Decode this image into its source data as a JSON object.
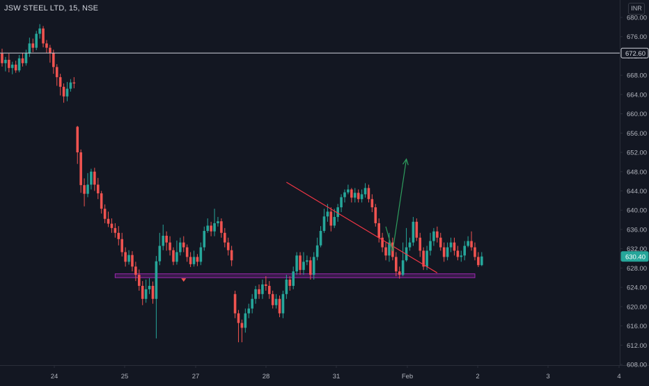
{
  "header": {
    "title": "JSW STEEL LTD, 15, NSE",
    "currency": "INR"
  },
  "price_scale": {
    "ticks": [
      "680.00",
      "676.00",
      "672.00",
      "668.00",
      "664.00",
      "660.00",
      "656.00",
      "652.00",
      "648.00",
      "644.00",
      "640.00",
      "636.00",
      "632.00",
      "628.00",
      "624.00",
      "620.00",
      "616.00",
      "612.00",
      "608.00"
    ]
  },
  "time_scale": {
    "ticks": [
      "24",
      "25",
      "27",
      "28",
      "31",
      "Feb",
      "2",
      "3",
      "4"
    ]
  },
  "badges": {
    "horizontal_line": "672.60",
    "last_price": "630.40"
  },
  "colors": {
    "background": "#131722",
    "up": "#26a69a",
    "down": "#ef5350",
    "horizontal_line": "#d1d4dc",
    "trendline": "#f23645",
    "support_zone": "#9c27b0",
    "projection": "#2e9e5e",
    "last_price_badge": "#26a69a",
    "marker": "#ef5350"
  },
  "chart_data": {
    "type": "candlestick",
    "title": "JSW STEEL LTD, 15, NSE",
    "ylim": [
      607,
      681
    ],
    "y_ticks": [
      680,
      676,
      672,
      668,
      664,
      660,
      656,
      652,
      648,
      644,
      640,
      636,
      632,
      628,
      624,
      620,
      616,
      612,
      608
    ],
    "x_ticks": [
      "24",
      "25",
      "27",
      "28",
      "31",
      "Feb",
      "2",
      "3",
      "4"
    ],
    "grid": false,
    "horizontal_line": 672.6,
    "last_price": 630.4,
    "candles": [
      [
        672.5,
        670.5,
        673.5,
        669.8
      ],
      [
        670.5,
        671.2,
        671.8,
        668.8
      ],
      [
        671.2,
        669.5,
        672.5,
        668.6
      ],
      [
        669.5,
        670.2,
        670.8,
        668.2
      ],
      [
        670.2,
        669.0,
        671.0,
        668.5
      ],
      [
        669.0,
        671.5,
        672.2,
        668.6
      ],
      [
        671.5,
        670.5,
        672.6,
        669.8
      ],
      [
        670.5,
        672.5,
        673.3,
        670.0
      ],
      [
        672.5,
        674.6,
        675.8,
        671.8
      ],
      [
        674.6,
        673.7,
        675.6,
        672.8
      ],
      [
        673.7,
        676.6,
        677.2,
        673.2
      ],
      [
        676.6,
        677.7,
        678.6,
        675.6
      ],
      [
        677.7,
        674.6,
        678.2,
        673.8
      ],
      [
        674.6,
        673.7,
        675.3,
        672.6
      ],
      [
        673.7,
        672.6,
        674.3,
        670.6
      ],
      [
        672.6,
        669.7,
        673.3,
        668.3
      ],
      [
        669.7,
        667.6,
        670.3,
        665.8
      ],
      [
        667.6,
        665.6,
        668.3,
        663.8
      ],
      [
        665.6,
        663.6,
        666.3,
        662.3
      ],
      [
        663.6,
        665.2,
        666.6,
        662.6
      ],
      [
        665.2,
        666.5,
        667.2,
        664.6
      ],
      [
        666.5,
        666.3,
        667.6,
        665.3
      ],
      [
        657.3,
        652.0,
        657.5,
        649.6
      ],
      [
        652.0,
        645.2,
        652.6,
        643.6
      ],
      [
        645.2,
        643.4,
        646.6,
        640.8
      ],
      [
        643.4,
        645.3,
        647.7,
        642.7
      ],
      [
        645.3,
        648.0,
        648.6,
        644.3
      ],
      [
        648.0,
        645.3,
        648.8,
        644.0
      ],
      [
        645.3,
        643.5,
        646.7,
        642.3
      ],
      [
        643.5,
        640.3,
        644.0,
        639.3
      ],
      [
        640.3,
        638.2,
        641.2,
        637.3
      ],
      [
        638.2,
        637.2,
        639.7,
        636.5
      ],
      [
        637.2,
        636.3,
        638.3,
        635.3
      ],
      [
        636.3,
        635.3,
        637.3,
        634.3
      ],
      [
        635.3,
        634.0,
        636.7,
        632.7
      ],
      [
        634.0,
        631.3,
        635.3,
        630.4
      ],
      [
        631.3,
        629.3,
        632.3,
        628.3
      ],
      [
        629.3,
        630.7,
        631.7,
        628.7
      ],
      [
        630.7,
        628.3,
        631.5,
        627.3
      ],
      [
        628.3,
        626.6,
        629.3,
        625.3
      ],
      [
        626.6,
        624.3,
        627.7,
        623.3
      ],
      [
        624.3,
        621.6,
        625.3,
        620.3
      ],
      [
        621.6,
        623.6,
        625.6,
        620.8
      ],
      [
        623.6,
        624.3,
        625.9,
        622.6
      ],
      [
        624.3,
        621.6,
        625.2,
        620.6
      ],
      [
        621.6,
        629.4,
        630.5,
        613.4
      ],
      [
        629.4,
        632.6,
        635.3,
        628.6
      ],
      [
        632.6,
        634.7,
        637.0,
        631.7
      ],
      [
        634.7,
        633.3,
        635.6,
        631.6
      ],
      [
        633.3,
        631.7,
        634.6,
        630.6
      ],
      [
        631.7,
        629.3,
        632.3,
        628.6
      ],
      [
        629.3,
        631.3,
        633.7,
        628.7
      ],
      [
        631.3,
        633.3,
        634.3,
        630.6
      ],
      [
        633.3,
        632.3,
        634.6,
        631.3
      ],
      [
        632.3,
        630.3,
        632.9,
        629.3
      ],
      [
        630.3,
        628.8,
        631.3,
        628.2
      ],
      [
        628.8,
        630.3,
        631.6,
        628.3
      ],
      [
        630.3,
        629.3,
        630.9,
        628.4
      ],
      [
        629.3,
        632.3,
        633.3,
        628.6
      ],
      [
        632.3,
        635.7,
        636.6,
        631.6
      ],
      [
        635.7,
        636.8,
        638.3,
        635.3
      ],
      [
        636.8,
        635.6,
        637.6,
        634.6
      ],
      [
        635.6,
        637.3,
        640.3,
        634.6
      ],
      [
        637.3,
        637.7,
        638.6,
        636.6
      ],
      [
        637.7,
        635.3,
        638.3,
        634.3
      ],
      [
        635.3,
        633.3,
        636.3,
        632.3
      ],
      [
        633.3,
        631.7,
        634.3,
        630.6
      ],
      [
        631.7,
        629.6,
        632.6,
        628.4
      ],
      [
        622.6,
        618.6,
        623.3,
        617.6
      ],
      [
        618.6,
        616.6,
        619.3,
        612.6
      ],
      [
        616.6,
        615.6,
        617.3,
        612.6
      ],
      [
        615.6,
        618.6,
        619.6,
        614.6
      ],
      [
        618.6,
        619.6,
        620.6,
        617.6
      ],
      [
        619.6,
        621.6,
        622.6,
        618.6
      ],
      [
        621.6,
        623.6,
        624.3,
        620.6
      ],
      [
        623.6,
        622.6,
        624.6,
        621.6
      ],
      [
        622.6,
        624.6,
        625.6,
        621.6
      ],
      [
        624.6,
        624.3,
        626.3,
        623.3
      ],
      [
        624.3,
        622.6,
        625.3,
        621.6
      ],
      [
        622.6,
        620.3,
        623.3,
        619.6
      ],
      [
        620.3,
        621.6,
        622.6,
        619.6
      ],
      [
        621.6,
        618.6,
        622.3,
        617.8
      ],
      [
        618.6,
        622.6,
        623.3,
        617.6
      ],
      [
        622.6,
        625.6,
        626.6,
        621.6
      ],
      [
        625.6,
        624.3,
        626.3,
        623.3
      ],
      [
        624.3,
        627.3,
        628.3,
        623.6
      ],
      [
        627.3,
        630.6,
        631.3,
        626.6
      ],
      [
        630.6,
        627.6,
        631.3,
        626.6
      ],
      [
        627.6,
        629.3,
        631.3,
        626.6
      ],
      [
        629.3,
        629.6,
        630.6,
        628.6
      ],
      [
        629.6,
        626.6,
        630.3,
        625.6
      ],
      [
        626.6,
        630.3,
        631.3,
        625.6
      ],
      [
        630.3,
        632.7,
        634.3,
        629.6
      ],
      [
        632.7,
        635.7,
        636.7,
        632.3
      ],
      [
        635.7,
        638.7,
        640.3,
        635.3
      ],
      [
        638.7,
        639.7,
        641.3,
        637.6
      ],
      [
        639.7,
        636.8,
        640.6,
        635.6
      ],
      [
        636.8,
        638.6,
        640.3,
        636.3
      ],
      [
        638.6,
        640.6,
        641.3,
        637.6
      ],
      [
        640.6,
        642.7,
        643.3,
        639.6
      ],
      [
        642.7,
        643.7,
        644.3,
        641.6
      ],
      [
        643.7,
        644.3,
        645.3,
        643.3
      ],
      [
        644.3,
        642.6,
        644.6,
        641.6
      ],
      [
        642.6,
        643.6,
        644.6,
        641.6
      ],
      [
        643.6,
        642.3,
        644.3,
        641.6
      ],
      [
        642.3,
        643.3,
        644.3,
        641.6
      ],
      [
        643.3,
        644.6,
        645.6,
        642.6
      ],
      [
        644.6,
        642.3,
        645.3,
        641.6
      ],
      [
        642.3,
        640.6,
        643.3,
        639.6
      ],
      [
        640.6,
        637.3,
        641.3,
        636.6
      ],
      [
        637.3,
        634.3,
        638.3,
        633.3
      ],
      [
        634.3,
        632.3,
        635.3,
        631.3
      ],
      [
        632.3,
        630.6,
        633.3,
        629.6
      ],
      [
        630.6,
        633.3,
        635.3,
        629.3
      ],
      [
        633.3,
        630.3,
        634.3,
        629.6
      ],
      [
        630.3,
        627.3,
        631.3,
        626.3
      ],
      [
        627.3,
        626.6,
        628.3,
        625.8
      ],
      [
        626.6,
        629.6,
        633.3,
        626.3
      ],
      [
        629.6,
        632.3,
        636.3,
        629.3
      ],
      [
        632.3,
        633.3,
        634.3,
        631.6
      ],
      [
        633.3,
        637.6,
        638.6,
        632.6
      ],
      [
        637.6,
        634.3,
        638.3,
        633.6
      ],
      [
        634.3,
        631.6,
        635.3,
        630.3
      ],
      [
        631.6,
        628.3,
        632.3,
        627.6
      ],
      [
        628.3,
        631.6,
        632.6,
        627.6
      ],
      [
        631.6,
        633.6,
        635.3,
        630.6
      ],
      [
        633.6,
        635.6,
        636.3,
        632.6
      ],
      [
        635.6,
        634.3,
        636.6,
        633.3
      ],
      [
        634.3,
        632.3,
        635.3,
        631.6
      ],
      [
        632.3,
        630.3,
        633.3,
        629.3
      ],
      [
        630.3,
        632.3,
        633.3,
        629.6
      ],
      [
        632.3,
        633.3,
        634.3,
        631.3
      ],
      [
        633.3,
        631.6,
        634.3,
        630.6
      ],
      [
        631.6,
        630.3,
        632.6,
        629.6
      ],
      [
        630.3,
        630.6,
        631.6,
        629.3
      ],
      [
        630.6,
        632.6,
        633.6,
        629.6
      ],
      [
        632.6,
        633.6,
        634.6,
        632.3
      ],
      [
        633.6,
        632.3,
        635.6,
        631.6
      ],
      [
        632.3,
        630.3,
        633.3,
        629.6
      ],
      [
        630.3,
        628.6,
        631.3,
        628.2
      ],
      [
        628.6,
        630.4,
        631.3,
        628.4
      ]
    ],
    "annotations": {
      "downtrend_line": {
        "from": [
          83,
          645.8
        ],
        "to": [
          127,
          627.0
        ]
      },
      "support_zone": {
        "from_bar": 33,
        "to_bar": 138,
        "low": 626.0,
        "high": 626.8
      },
      "projection_path": [
        [
          112,
          636.6
        ],
        [
          114,
          631.5
        ],
        [
          118,
          650.6
        ]
      ],
      "sell_marker": {
        "bar": 53,
        "price": 625.3
      }
    }
  }
}
